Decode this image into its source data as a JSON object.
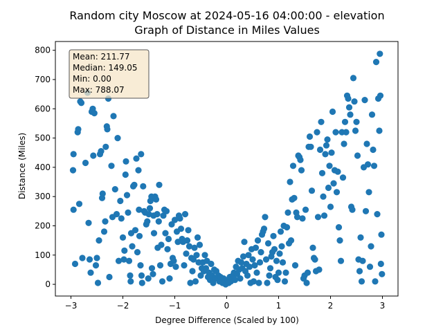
{
  "chart_data": {
    "type": "scatter",
    "title": "Random city Moscow at 2024-05-16 04:00:00  - elevation",
    "subtitle": "Graph of Distance in Miles Values",
    "xlabel": "Degree Difference (Scaled by 100)",
    "ylabel": "Distance (Miles)",
    "xlim": [
      -3.3,
      3.3
    ],
    "ylim": [
      -40,
      830
    ],
    "xticks": [
      -3,
      -2,
      -1,
      0,
      1,
      2,
      3
    ],
    "yticks": [
      0,
      100,
      200,
      300,
      400,
      500,
      600,
      700,
      800
    ],
    "grid": false,
    "marker_color": "#1f77b4",
    "stats_box": {
      "lines": [
        "Mean: 211.77",
        "Median: 149.05",
        "Min: 0.00",
        "Max: 788.07"
      ],
      "background": "#f5e6c8",
      "border": "#555555"
    },
    "points": [
      [
        -2.95,
        445
      ],
      [
        -2.96,
        390
      ],
      [
        -2.95,
        255
      ],
      [
        -2.92,
        70
      ],
      [
        -2.87,
        520
      ],
      [
        -2.86,
        530
      ],
      [
        -2.84,
        275
      ],
      [
        -2.82,
        625
      ],
      [
        -2.8,
        620
      ],
      [
        -2.78,
        90
      ],
      [
        -2.72,
        415
      ],
      [
        -2.68,
        655
      ],
      [
        -2.66,
        210
      ],
      [
        -2.64,
        85
      ],
      [
        -2.62,
        40
      ],
      [
        -2.6,
        590
      ],
      [
        -2.58,
        600
      ],
      [
        -2.57,
        440
      ],
      [
        -2.55,
        585
      ],
      [
        -2.52,
        65
      ],
      [
        -2.5,
        90
      ],
      [
        -2.48,
        5
      ],
      [
        -2.46,
        150
      ],
      [
        -2.44,
        445
      ],
      [
        -2.42,
        455
      ],
      [
        -2.4,
        295
      ],
      [
        -2.39,
        310
      ],
      [
        -2.36,
        180
      ],
      [
        -2.34,
        215
      ],
      [
        -2.33,
        470
      ],
      [
        -2.31,
        540
      ],
      [
        -2.3,
        530
      ],
      [
        -2.28,
        635
      ],
      [
        -2.26,
        25
      ],
      [
        -2.22,
        405
      ],
      [
        -2.2,
        230
      ],
      [
        -2.18,
        575
      ],
      [
        -2.15,
        325
      ],
      [
        -2.12,
        240
      ],
      [
        -2.1,
        500
      ],
      [
        -2.08,
        80
      ],
      [
        -2.05,
        285
      ],
      [
        -2.03,
        225
      ],
      [
        -2.0,
        160
      ],
      [
        -1.98,
        85
      ],
      [
        -1.97,
        115
      ],
      [
        -1.95,
        375
      ],
      [
        -1.94,
        420
      ],
      [
        -1.92,
        305
      ],
      [
        -1.9,
        245
      ],
      [
        -1.88,
        80
      ],
      [
        -1.86,
        30
      ],
      [
        -1.85,
        10
      ],
      [
        -1.84,
        175
      ],
      [
        -1.82,
        130
      ],
      [
        -1.8,
        335
      ],
      [
        -1.78,
        340
      ],
      [
        -1.76,
        185
      ],
      [
        -1.74,
        430
      ],
      [
        -1.72,
        110
      ],
      [
        -1.7,
        390
      ],
      [
        -1.69,
        255
      ],
      [
        -1.68,
        165
      ],
      [
        -1.66,
        65
      ],
      [
        -1.65,
        445
      ],
      [
        -1.64,
        30
      ],
      [
        -1.63,
        5
      ],
      [
        -1.61,
        335
      ],
      [
        -1.59,
        250
      ],
      [
        -1.57,
        245
      ],
      [
        -1.55,
        205
      ],
      [
        -1.53,
        215
      ],
      [
        -1.51,
        20
      ],
      [
        -1.5,
        240
      ],
      [
        -1.48,
        260
      ],
      [
        -1.47,
        285
      ],
      [
        -1.45,
        300
      ],
      [
        -1.44,
        55
      ],
      [
        -1.42,
        35
      ],
      [
        -1.41,
        235
      ],
      [
        -1.4,
        175
      ],
      [
        -1.38,
        300
      ],
      [
        -1.36,
        290
      ],
      [
        -1.34,
        240
      ],
      [
        -1.33,
        125
      ],
      [
        -1.31,
        215
      ],
      [
        -1.3,
        340
      ],
      [
        -1.28,
        65
      ],
      [
        -1.26,
        135
      ],
      [
        -1.24,
        10
      ],
      [
        -1.22,
        235
      ],
      [
        -1.2,
        255
      ],
      [
        -1.18,
        175
      ],
      [
        -1.16,
        250
      ],
      [
        -1.14,
        120
      ],
      [
        -1.12,
        155
      ],
      [
        -1.1,
        20
      ],
      [
        -1.08,
        70
      ],
      [
        -1.06,
        205
      ],
      [
        -1.04,
        90
      ],
      [
        -1.02,
        80
      ],
      [
        -1.0,
        220
      ],
      [
        -0.98,
        60
      ],
      [
        -0.96,
        180
      ],
      [
        -0.94,
        145
      ],
      [
        -0.92,
        235
      ],
      [
        -0.9,
        225
      ],
      [
        -0.88,
        190
      ],
      [
        -0.86,
        155
      ],
      [
        -0.84,
        145
      ],
      [
        -0.82,
        65
      ],
      [
        -0.8,
        240
      ],
      [
        -0.78,
        105
      ],
      [
        -0.76,
        150
      ],
      [
        -0.74,
        185
      ],
      [
        -0.72,
        130
      ],
      [
        -0.7,
        5
      ],
      [
        -0.68,
        90
      ],
      [
        -0.66,
        45
      ],
      [
        -0.64,
        85
      ],
      [
        -0.62,
        125
      ],
      [
        -0.6,
        10
      ],
      [
        -0.58,
        100
      ],
      [
        -0.56,
        160
      ],
      [
        -0.54,
        75
      ],
      [
        -0.52,
        135
      ],
      [
        -0.5,
        30
      ],
      [
        -0.48,
        55
      ],
      [
        -0.46,
        75
      ],
      [
        -0.44,
        45
      ],
      [
        -0.42,
        100
      ],
      [
        -0.4,
        55
      ],
      [
        -0.38,
        80
      ],
      [
        -0.36,
        25
      ],
      [
        -0.34,
        40
      ],
      [
        -0.32,
        15
      ],
      [
        -0.3,
        70
      ],
      [
        -0.28,
        30
      ],
      [
        -0.26,
        5
      ],
      [
        -0.24,
        50
      ],
      [
        -0.22,
        20
      ],
      [
        -0.2,
        45
      ],
      [
        -0.18,
        20
      ],
      [
        -0.16,
        30
      ],
      [
        -0.14,
        10
      ],
      [
        -0.12,
        25
      ],
      [
        -0.1,
        15
      ],
      [
        -0.08,
        5
      ],
      [
        -0.06,
        20
      ],
      [
        -0.04,
        10
      ],
      [
        -0.02,
        0
      ],
      [
        0.0,
        5
      ],
      [
        0.02,
        15
      ],
      [
        0.04,
        5
      ],
      [
        0.06,
        25
      ],
      [
        0.08,
        10
      ],
      [
        0.1,
        20
      ],
      [
        0.12,
        30
      ],
      [
        0.14,
        40
      ],
      [
        0.16,
        15
      ],
      [
        0.18,
        60
      ],
      [
        0.2,
        35
      ],
      [
        0.22,
        80
      ],
      [
        0.24,
        50
      ],
      [
        0.26,
        20
      ],
      [
        0.28,
        75
      ],
      [
        0.3,
        55
      ],
      [
        0.32,
        95
      ],
      [
        0.34,
        145
      ],
      [
        0.36,
        45
      ],
      [
        0.38,
        70
      ],
      [
        0.4,
        30
      ],
      [
        0.42,
        100
      ],
      [
        0.44,
        60
      ],
      [
        0.46,
        5
      ],
      [
        0.48,
        120
      ],
      [
        0.5,
        85
      ],
      [
        0.52,
        10
      ],
      [
        0.54,
        65
      ],
      [
        0.56,
        125
      ],
      [
        0.58,
        40
      ],
      [
        0.6,
        150
      ],
      [
        0.62,
        5
      ],
      [
        0.64,
        75
      ],
      [
        0.66,
        110
      ],
      [
        0.68,
        170
      ],
      [
        0.7,
        180
      ],
      [
        0.72,
        190
      ],
      [
        0.74,
        230
      ],
      [
        0.76,
        85
      ],
      [
        0.78,
        5
      ],
      [
        0.8,
        140
      ],
      [
        0.82,
        30
      ],
      [
        0.84,
        55
      ],
      [
        0.86,
        95
      ],
      [
        0.88,
        110
      ],
      [
        0.9,
        165
      ],
      [
        0.92,
        120
      ],
      [
        0.94,
        25
      ],
      [
        0.96,
        80
      ],
      [
        0.98,
        15
      ],
      [
        1.0,
        40
      ],
      [
        1.02,
        105
      ],
      [
        1.04,
        180
      ],
      [
        1.06,
        130
      ],
      [
        1.08,
        75
      ],
      [
        1.1,
        200
      ],
      [
        1.12,
        10
      ],
      [
        1.14,
        40
      ],
      [
        1.16,
        195
      ],
      [
        1.18,
        245
      ],
      [
        1.2,
        140
      ],
      [
        1.22,
        350
      ],
      [
        1.24,
        150
      ],
      [
        1.26,
        290
      ],
      [
        1.28,
        405
      ],
      [
        1.3,
        295
      ],
      [
        1.32,
        65
      ],
      [
        1.34,
        245
      ],
      [
        1.36,
        230
      ],
      [
        1.38,
        440
      ],
      [
        1.4,
        435
      ],
      [
        1.42,
        425
      ],
      [
        1.44,
        390
      ],
      [
        1.46,
        225
      ],
      [
        1.48,
        20
      ],
      [
        1.5,
        30
      ],
      [
        1.52,
        255
      ],
      [
        1.54,
        5
      ],
      [
        1.56,
        40
      ],
      [
        1.58,
        470
      ],
      [
        1.6,
        505
      ],
      [
        1.62,
        470
      ],
      [
        1.64,
        320
      ],
      [
        1.66,
        125
      ],
      [
        1.68,
        90
      ],
      [
        1.7,
        85
      ],
      [
        1.72,
        45
      ],
      [
        1.74,
        520
      ],
      [
        1.76,
        230
      ],
      [
        1.78,
        50
      ],
      [
        1.8,
        460
      ],
      [
        1.82,
        555
      ],
      [
        1.84,
        380
      ],
      [
        1.86,
        300
      ],
      [
        1.88,
        235
      ],
      [
        1.9,
        445
      ],
      [
        1.92,
        475
      ],
      [
        1.94,
        495
      ],
      [
        1.96,
        330
      ],
      [
        1.98,
        405
      ],
      [
        2.0,
        265
      ],
      [
        2.02,
        450
      ],
      [
        2.04,
        590
      ],
      [
        2.06,
        345
      ],
      [
        2.08,
        390
      ],
      [
        2.1,
        520
      ],
      [
        2.12,
        315
      ],
      [
        2.14,
        385
      ],
      [
        2.16,
        195
      ],
      [
        2.18,
        150
      ],
      [
        2.2,
        80
      ],
      [
        2.22,
        520
      ],
      [
        2.24,
        365
      ],
      [
        2.26,
        480
      ],
      [
        2.28,
        555
      ],
      [
        2.3,
        520
      ],
      [
        2.32,
        645
      ],
      [
        2.34,
        635
      ],
      [
        2.36,
        605
      ],
      [
        2.38,
        580
      ],
      [
        2.4,
        265
      ],
      [
        2.42,
        255
      ],
      [
        2.44,
        705
      ],
      [
        2.46,
        625
      ],
      [
        2.48,
        525
      ],
      [
        2.5,
        555
      ],
      [
        2.52,
        440
      ],
      [
        2.54,
        85
      ],
      [
        2.56,
        45
      ],
      [
        2.58,
        160
      ],
      [
        2.6,
        10
      ],
      [
        2.62,
        80
      ],
      [
        2.64,
        400
      ],
      [
        2.66,
        630
      ],
      [
        2.68,
        250
      ],
      [
        2.7,
        480
      ],
      [
        2.72,
        410
      ],
      [
        2.74,
        315
      ],
      [
        2.76,
        60
      ],
      [
        2.78,
        130
      ],
      [
        2.8,
        580
      ],
      [
        2.82,
        460
      ],
      [
        2.84,
        405
      ],
      [
        2.86,
        10
      ],
      [
        2.88,
        760
      ],
      [
        2.9,
        240
      ],
      [
        2.92,
        635
      ],
      [
        2.94,
        525
      ],
      [
        2.95,
        788
      ],
      [
        2.96,
        645
      ],
      [
        2.97,
        70
      ],
      [
        2.98,
        170
      ],
      [
        2.99,
        35
      ]
    ]
  }
}
